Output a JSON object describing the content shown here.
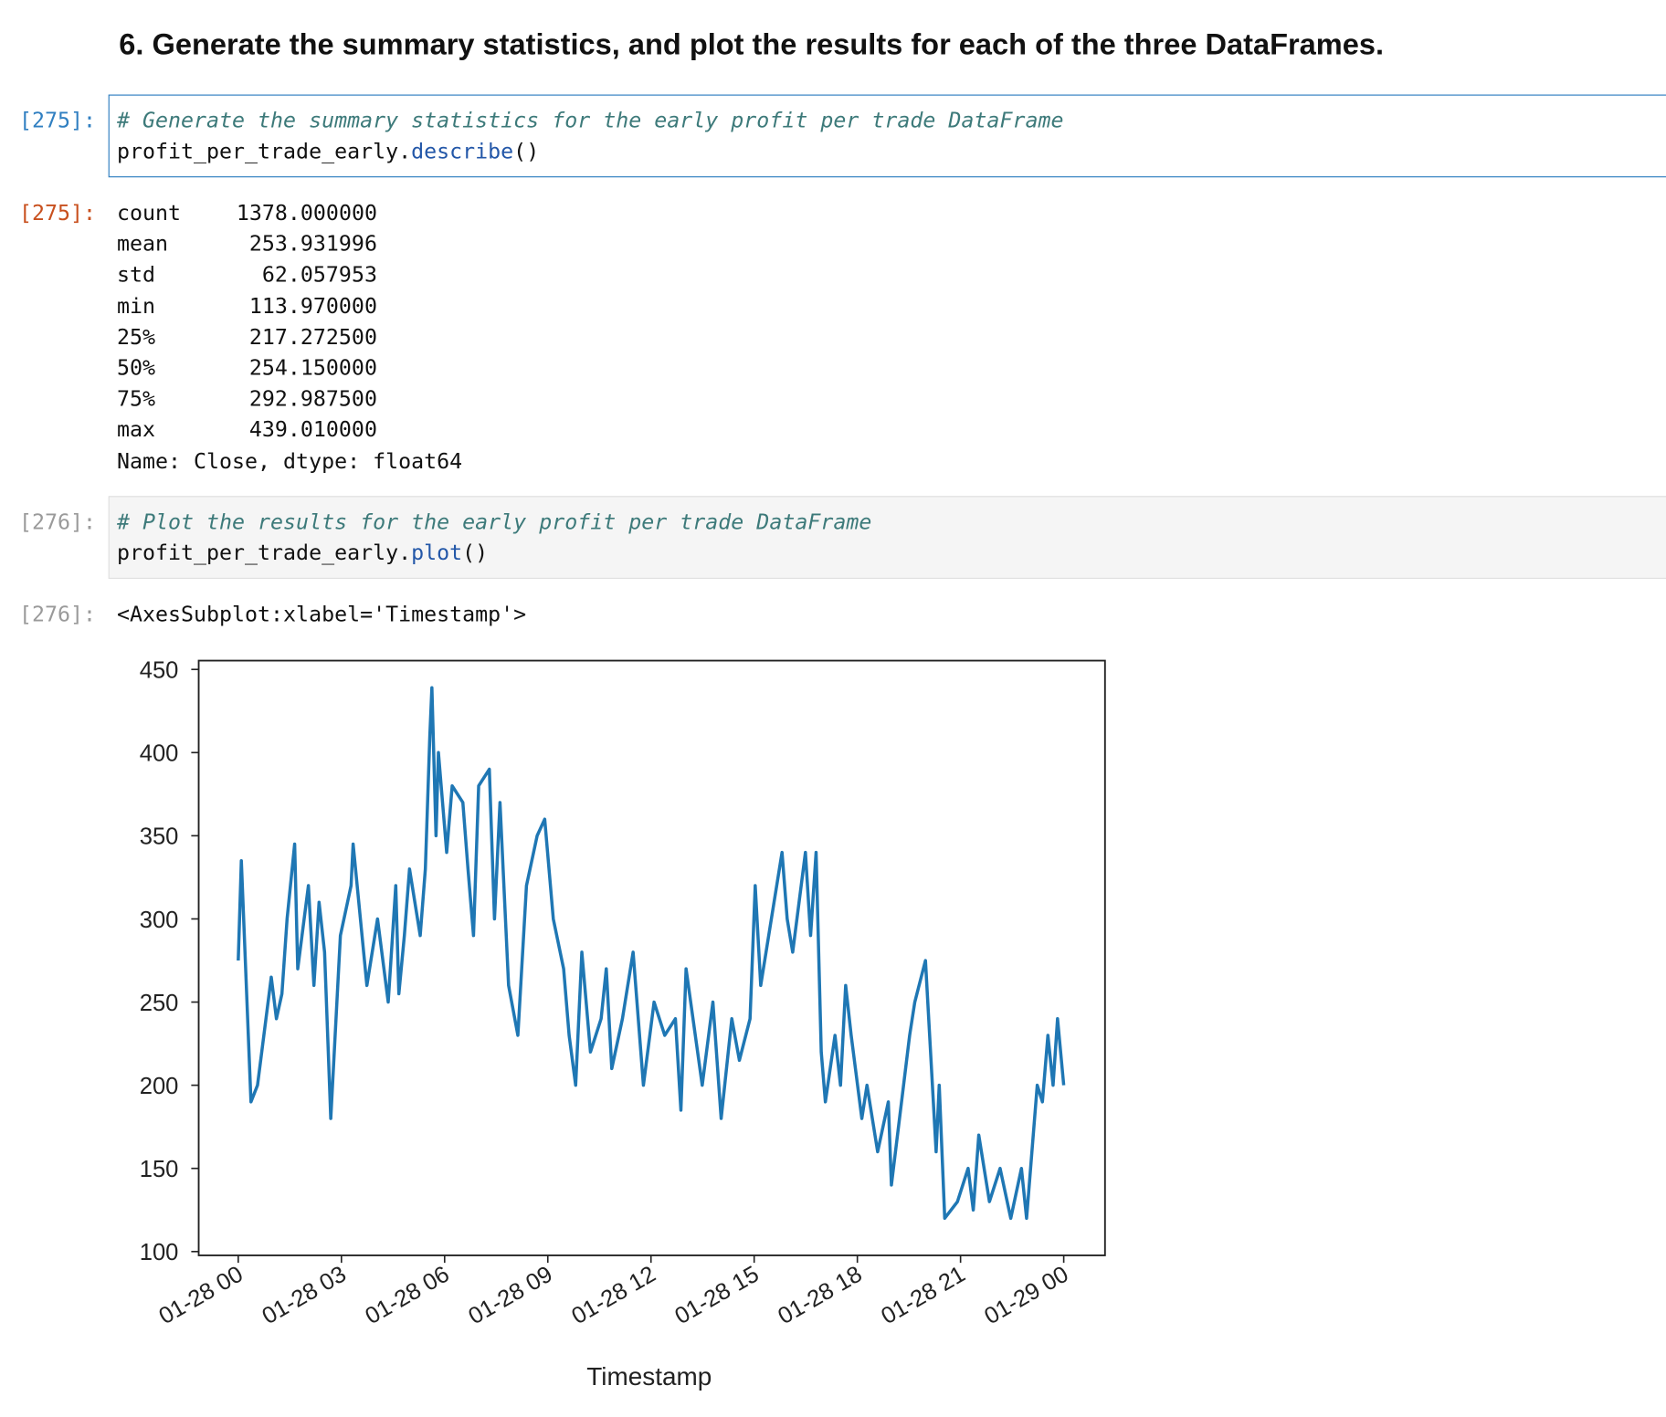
{
  "heading": "6. Generate the summary statistics, and plot the results for each of the three DataFrames.",
  "cells": [
    {
      "in_prompt": "[275]:",
      "comment": "# Generate the summary statistics for the early profit per trade DataFrame",
      "object": "profit_per_trade_early.",
      "method": "describe",
      "call": "()",
      "out_prompt": "[275]:",
      "rows": [
        [
          "count",
          "1378.000000"
        ],
        [
          "mean",
          "253.931996"
        ],
        [
          "std",
          "62.057953"
        ],
        [
          "min",
          "113.970000"
        ],
        [
          "25%",
          "217.272500"
        ],
        [
          "50%",
          "254.150000"
        ],
        [
          "75%",
          "292.987500"
        ],
        [
          "max",
          "439.010000"
        ]
      ],
      "footer": "Name: Close, dtype: float64"
    },
    {
      "in_prompt": "[276]:",
      "comment": "# Plot the results for the early profit per trade DataFrame",
      "object": "profit_per_trade_early.",
      "method": "plot",
      "call": "()",
      "out_prompt": "[276]:",
      "repr": "<AxesSubplot:xlabel='Timestamp'>"
    }
  ],
  "chart_data": {
    "type": "line",
    "x_label": "Timestamp",
    "color": "#1f77b4",
    "x": [
      0,
      0.09,
      0.37,
      0.56,
      0.96,
      1.11,
      1.27,
      1.42,
      1.64,
      1.73,
      2.04,
      2.2,
      2.35,
      2.51,
      2.69,
      2.97,
      3.28,
      3.34,
      3.74,
      4.05,
      4.36,
      4.58,
      4.67,
      4.83,
      4.98,
      5.29,
      5.44,
      5.57,
      5.63,
      5.75,
      5.82,
      6.06,
      6.22,
      6.53,
      6.68,
      6.84,
      6.99,
      7.3,
      7.45,
      7.61,
      7.86,
      8.13,
      8.38,
      8.69,
      8.91,
      9.16,
      9.46,
      9.62,
      9.81,
      9.99,
      10.24,
      10.55,
      10.7,
      10.86,
      11.17,
      11.48,
      11.78,
      12.09,
      12.4,
      12.71,
      12.87,
      13.02,
      13.49,
      13.8,
      14.04,
      14.35,
      14.57,
      14.88,
      15.03,
      15.19,
      15.5,
      15.81,
      15.96,
      16.12,
      16.49,
      16.64,
      16.8,
      16.95,
      17.07,
      17.35,
      17.51,
      17.66,
      17.82,
      18.13,
      18.28,
      18.59,
      18.9,
      18.99,
      19.52,
      19.67,
      19.98,
      20.29,
      20.38,
      20.54,
      20.91,
      21.22,
      21.37,
      21.53,
      21.84,
      22.15,
      22.46,
      22.77,
      22.92,
      23.23,
      23.38,
      23.54,
      23.69,
      23.82,
      24.0
    ],
    "values": [
      275,
      335,
      190,
      200,
      265,
      240,
      255,
      300,
      345,
      270,
      320,
      260,
      310,
      280,
      180,
      290,
      320,
      345,
      260,
      300,
      250,
      320,
      255,
      290,
      330,
      290,
      330,
      410,
      439,
      350,
      400,
      340,
      380,
      370,
      330,
      290,
      380,
      390,
      300,
      370,
      260,
      230,
      320,
      350,
      360,
      300,
      270,
      230,
      200,
      280,
      220,
      240,
      270,
      210,
      240,
      280,
      200,
      250,
      230,
      240,
      185,
      270,
      200,
      250,
      180,
      240,
      215,
      240,
      320,
      260,
      300,
      340,
      300,
      280,
      340,
      290,
      340,
      220,
      190,
      230,
      200,
      260,
      230,
      180,
      200,
      160,
      190,
      140,
      230,
      250,
      275,
      160,
      200,
      120,
      130,
      150,
      125,
      170,
      130,
      150,
      120,
      150,
      120,
      200,
      190,
      230,
      200,
      240,
      200
    ],
    "xlim": [
      -1.15,
      25.2
    ],
    "xticks": [
      {
        "value": 0,
        "label": "01-28 00"
      },
      {
        "value": 3,
        "label": "01-28 03"
      },
      {
        "value": 6,
        "label": "01-28 06"
      },
      {
        "value": 9,
        "label": "01-28 09"
      },
      {
        "value": 12,
        "label": "01-28 12"
      },
      {
        "value": 15,
        "label": "01-28 15"
      },
      {
        "value": 18,
        "label": "01-28 18"
      },
      {
        "value": 21,
        "label": "01-28 21"
      },
      {
        "value": 24,
        "label": "01-29 00"
      }
    ],
    "ylim": [
      97.7,
      455.3
    ],
    "yticks": [
      100,
      150,
      200,
      250,
      300,
      350,
      400,
      450
    ],
    "grid": false
  }
}
